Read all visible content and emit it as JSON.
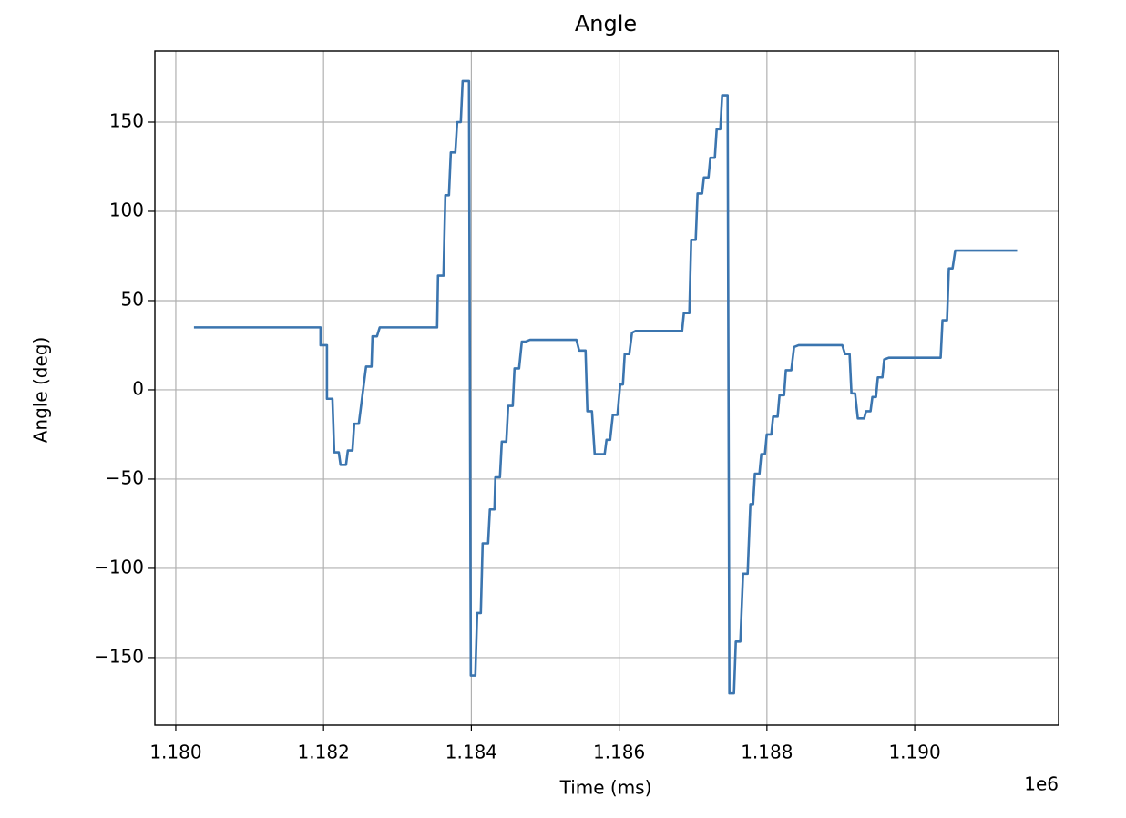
{
  "chart_data": {
    "type": "line",
    "title": "Angle",
    "x_label": "Time (ms)",
    "y_label": "Angle (deg)",
    "x_offset_label": "1e6",
    "color": "#3b75af",
    "grid": true,
    "xlim": [
      1179717,
      1191947
    ],
    "ylim": [
      -187.8,
      189.8
    ],
    "xticks": [
      {
        "value": 1180000,
        "label": "1.180"
      },
      {
        "value": 1182000,
        "label": "1.182"
      },
      {
        "value": 1184000,
        "label": "1.184"
      },
      {
        "value": 1186000,
        "label": "1.186"
      },
      {
        "value": 1188000,
        "label": "1.188"
      },
      {
        "value": 1190000,
        "label": "1.190"
      }
    ],
    "yticks": [
      {
        "value": -150,
        "label": "−150"
      },
      {
        "value": -100,
        "label": "−100"
      },
      {
        "value": -50,
        "label": "−50"
      },
      0,
      50,
      100,
      150
    ],
    "x": [
      1180246,
      1181959,
      1181959,
      1182046,
      1182046,
      1182120,
      1182144,
      1182206,
      1182230,
      1182304,
      1182329,
      1182391,
      1182415,
      1182477,
      1182526,
      1182575,
      1182649,
      1182662,
      1182723,
      1182760,
      1183537,
      1183549,
      1183623,
      1183648,
      1183697,
      1183722,
      1183783,
      1183808,
      1183857,
      1183882,
      1183968,
      1183993,
      1184054,
      1184079,
      1184128,
      1184153,
      1184227,
      1184251,
      1184313,
      1184325,
      1184387,
      1184412,
      1184473,
      1184498,
      1184560,
      1184584,
      1184646,
      1184683,
      1184732,
      1184794,
      1185422,
      1185459,
      1185545,
      1185570,
      1185632,
      1185669,
      1185804,
      1185829,
      1185878,
      1185915,
      1185977,
      1186014,
      1186051,
      1186075,
      1186137,
      1186174,
      1186223,
      1186852,
      1186876,
      1186950,
      1186975,
      1187036,
      1187061,
      1187123,
      1187147,
      1187209,
      1187234,
      1187295,
      1187320,
      1187369,
      1187394,
      1187468,
      1187492,
      1187554,
      1187579,
      1187640,
      1187677,
      1187739,
      1187776,
      1187813,
      1187837,
      1187899,
      1187924,
      1187973,
      1187998,
      1188059,
      1188084,
      1188145,
      1188170,
      1188232,
      1188256,
      1188330,
      1188367,
      1188429,
      1189020,
      1189057,
      1189119,
      1189144,
      1189193,
      1189230,
      1189316,
      1189341,
      1189402,
      1189427,
      1189476,
      1189501,
      1189563,
      1189587,
      1189649,
      1190351,
      1190376,
      1190437,
      1190462,
      1190512,
      1190548,
      1191386
    ],
    "values": [
      35,
      35,
      25,
      25,
      -5,
      -5,
      -35,
      -35,
      -42,
      -42,
      -34,
      -34,
      -19,
      -19,
      -3,
      13,
      13,
      30,
      30,
      35,
      35,
      64,
      64,
      109,
      109,
      133,
      133,
      150,
      150,
      173,
      173,
      -160,
      -160,
      -125,
      -125,
      -86,
      -86,
      -67,
      -67,
      -49,
      -49,
      -29,
      -29,
      -9,
      -9,
      12,
      12,
      27,
      27,
      28,
      28,
      22,
      22,
      -12,
      -12,
      -36,
      -36,
      -28,
      -28,
      -14,
      -14,
      3,
      3,
      20,
      20,
      32,
      33,
      33,
      43,
      43,
      84,
      84,
      110,
      110,
      119,
      119,
      130,
      130,
      146,
      146,
      165,
      165,
      -170,
      -170,
      -141,
      -141,
      -103,
      -103,
      -64,
      -64,
      -47,
      -47,
      -36,
      -36,
      -25,
      -25,
      -15,
      -15,
      -3,
      -3,
      11,
      11,
      24,
      25,
      25,
      20,
      20,
      -2,
      -2,
      -16,
      -16,
      -12,
      -12,
      -4,
      -4,
      7,
      7,
      17,
      18,
      18,
      39,
      39,
      68,
      68,
      78,
      78
    ]
  }
}
